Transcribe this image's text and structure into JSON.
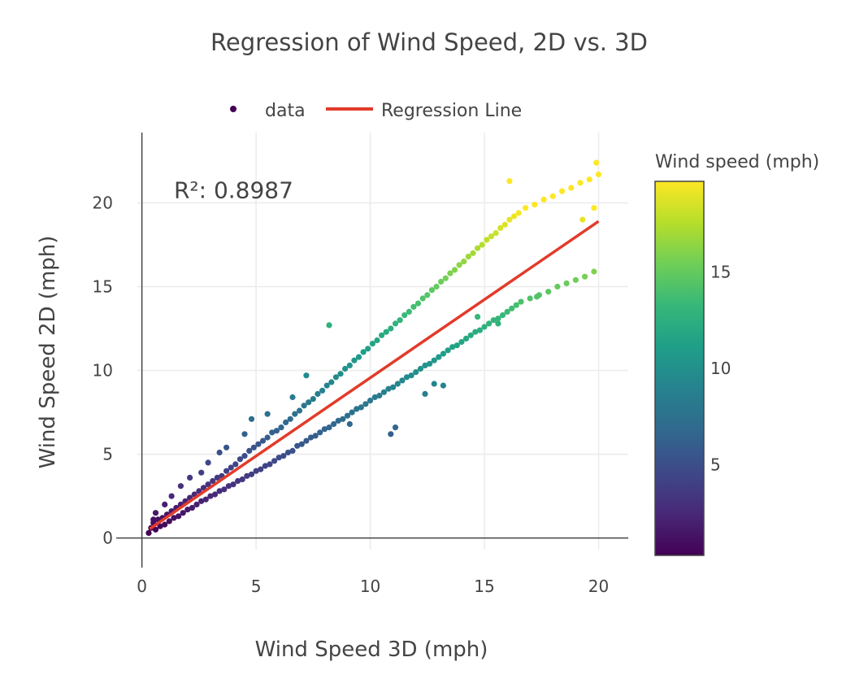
{
  "chart_data": {
    "type": "scatter",
    "title": "Regression of Wind Speed, 2D vs. 3D",
    "xlabel": "Wind Speed 3D (mph)",
    "ylabel": "Wind Speed 2D (mph)",
    "xlim": [
      -0.2,
      21.3
    ],
    "ylim": [
      -0.7,
      24.2
    ],
    "xticks": [
      0,
      5,
      10,
      15,
      20
    ],
    "yticks": [
      0,
      5,
      10,
      15,
      20
    ],
    "grid": true,
    "legend": {
      "placement": "top-center",
      "entries": [
        "data",
        "Regression Line"
      ]
    },
    "annotation": {
      "text": "R²: 0.8987",
      "x": 1.4,
      "y": 20.3
    },
    "colorbar": {
      "title": "Wind speed (mph)",
      "colorscale": "viridis",
      "range": [
        0.3,
        19.7
      ],
      "ticks": [
        5,
        10,
        15
      ]
    },
    "colors": {
      "regression_line": "#e23b2a",
      "viridis": [
        "#440154",
        "#482878",
        "#3e4989",
        "#31688e",
        "#26828e",
        "#1f9e89",
        "#35b779",
        "#6ece58",
        "#b5de2b",
        "#fde725"
      ]
    },
    "series": [
      {
        "name": "data",
        "mode": "markers",
        "points": [
          [
            0.4,
            0.6
          ],
          [
            0.5,
            0.9
          ],
          [
            0.6,
            0.5
          ],
          [
            0.7,
            1.1
          ],
          [
            0.8,
            0.7
          ],
          [
            0.9,
            1.2
          ],
          [
            1.0,
            0.8
          ],
          [
            1.1,
            1.4
          ],
          [
            1.2,
            1.0
          ],
          [
            1.3,
            1.6
          ],
          [
            1.4,
            1.2
          ],
          [
            1.5,
            1.8
          ],
          [
            1.6,
            1.3
          ],
          [
            1.7,
            2.0
          ],
          [
            1.8,
            1.5
          ],
          [
            1.9,
            2.2
          ],
          [
            2.0,
            1.7
          ],
          [
            2.1,
            2.4
          ],
          [
            2.2,
            1.8
          ],
          [
            2.3,
            2.6
          ],
          [
            2.4,
            2.0
          ],
          [
            2.5,
            2.8
          ],
          [
            2.6,
            2.2
          ],
          [
            2.7,
            3.0
          ],
          [
            2.8,
            2.3
          ],
          [
            2.9,
            3.2
          ],
          [
            3.0,
            2.5
          ],
          [
            3.1,
            3.4
          ],
          [
            3.2,
            2.6
          ],
          [
            3.3,
            3.6
          ],
          [
            3.4,
            2.8
          ],
          [
            3.5,
            3.7
          ],
          [
            3.6,
            2.9
          ],
          [
            3.7,
            4.0
          ],
          [
            3.8,
            3.1
          ],
          [
            3.9,
            4.2
          ],
          [
            4.0,
            3.2
          ],
          [
            4.1,
            4.4
          ],
          [
            4.2,
            3.4
          ],
          [
            4.3,
            4.7
          ],
          [
            4.4,
            3.5
          ],
          [
            4.5,
            4.9
          ],
          [
            4.6,
            3.7
          ],
          [
            4.7,
            5.2
          ],
          [
            4.8,
            3.8
          ],
          [
            4.9,
            5.4
          ],
          [
            5.0,
            4.0
          ],
          [
            5.1,
            5.6
          ],
          [
            5.2,
            4.1
          ],
          [
            5.3,
            5.8
          ],
          [
            5.4,
            4.3
          ],
          [
            5.5,
            6.0
          ],
          [
            5.6,
            4.4
          ],
          [
            5.7,
            6.3
          ],
          [
            5.8,
            4.6
          ],
          [
            5.9,
            6.4
          ],
          [
            6.0,
            4.8
          ],
          [
            6.1,
            6.6
          ],
          [
            6.2,
            4.9
          ],
          [
            6.3,
            6.9
          ],
          [
            6.4,
            5.1
          ],
          [
            6.5,
            7.1
          ],
          [
            6.6,
            5.2
          ],
          [
            6.7,
            7.4
          ],
          [
            6.8,
            5.5
          ],
          [
            6.9,
            7.6
          ],
          [
            7.0,
            5.6
          ],
          [
            7.1,
            7.9
          ],
          [
            7.2,
            5.8
          ],
          [
            7.3,
            8.1
          ],
          [
            7.4,
            6.0
          ],
          [
            7.5,
            8.3
          ],
          [
            7.6,
            6.1
          ],
          [
            7.7,
            8.6
          ],
          [
            7.8,
            6.3
          ],
          [
            7.9,
            8.8
          ],
          [
            8.0,
            6.5
          ],
          [
            8.1,
            9.1
          ],
          [
            8.2,
            6.6
          ],
          [
            8.3,
            9.3
          ],
          [
            8.4,
            6.8
          ],
          [
            8.5,
            9.6
          ],
          [
            8.6,
            7.0
          ],
          [
            8.7,
            9.8
          ],
          [
            8.8,
            7.1
          ],
          [
            8.9,
            10.1
          ],
          [
            9.0,
            7.3
          ],
          [
            9.1,
            10.3
          ],
          [
            9.2,
            7.5
          ],
          [
            9.3,
            10.6
          ],
          [
            9.4,
            7.7
          ],
          [
            9.5,
            10.8
          ],
          [
            9.6,
            7.8
          ],
          [
            9.7,
            11.1
          ],
          [
            9.8,
            8.0
          ],
          [
            9.9,
            11.3
          ],
          [
            10.0,
            8.2
          ],
          [
            10.1,
            11.6
          ],
          [
            10.2,
            8.4
          ],
          [
            10.3,
            11.8
          ],
          [
            10.4,
            8.5
          ],
          [
            10.5,
            12.1
          ],
          [
            10.6,
            8.7
          ],
          [
            10.7,
            12.3
          ],
          [
            10.8,
            8.9
          ],
          [
            10.9,
            12.5
          ],
          [
            11.0,
            9.0
          ],
          [
            11.1,
            12.8
          ],
          [
            11.2,
            9.2
          ],
          [
            11.3,
            13.0
          ],
          [
            11.4,
            9.4
          ],
          [
            11.5,
            13.3
          ],
          [
            11.6,
            9.6
          ],
          [
            11.7,
            13.5
          ],
          [
            11.8,
            9.7
          ],
          [
            11.9,
            13.8
          ],
          [
            12.0,
            9.9
          ],
          [
            12.1,
            14.0
          ],
          [
            12.2,
            10.1
          ],
          [
            12.3,
            14.3
          ],
          [
            12.4,
            10.3
          ],
          [
            12.5,
            14.5
          ],
          [
            12.6,
            10.4
          ],
          [
            12.7,
            14.8
          ],
          [
            12.8,
            10.6
          ],
          [
            12.9,
            15.0
          ],
          [
            13.0,
            10.8
          ],
          [
            13.1,
            15.3
          ],
          [
            13.2,
            11.0
          ],
          [
            13.3,
            15.5
          ],
          [
            13.4,
            11.2
          ],
          [
            13.5,
            15.8
          ],
          [
            13.6,
            11.4
          ],
          [
            13.7,
            16.0
          ],
          [
            13.8,
            11.5
          ],
          [
            13.9,
            16.3
          ],
          [
            14.0,
            11.7
          ],
          [
            14.1,
            16.5
          ],
          [
            14.2,
            11.9
          ],
          [
            14.3,
            16.8
          ],
          [
            14.4,
            12.1
          ],
          [
            14.5,
            17.0
          ],
          [
            14.6,
            12.3
          ],
          [
            14.7,
            17.3
          ],
          [
            14.8,
            12.4
          ],
          [
            14.9,
            17.5
          ],
          [
            15.0,
            12.6
          ],
          [
            15.1,
            17.8
          ],
          [
            15.2,
            12.8
          ],
          [
            15.3,
            18.0
          ],
          [
            15.4,
            13.0
          ],
          [
            15.5,
            18.2
          ],
          [
            15.6,
            13.1
          ],
          [
            15.7,
            18.5
          ],
          [
            15.8,
            13.3
          ],
          [
            15.9,
            18.7
          ],
          [
            16.0,
            13.5
          ],
          [
            16.1,
            19.0
          ],
          [
            16.2,
            13.7
          ],
          [
            16.3,
            19.2
          ],
          [
            16.4,
            13.9
          ],
          [
            16.5,
            19.4
          ],
          [
            16.6,
            14.1
          ],
          [
            16.8,
            19.7
          ],
          [
            17.0,
            14.3
          ],
          [
            17.2,
            19.9
          ],
          [
            17.4,
            14.5
          ],
          [
            17.6,
            20.2
          ],
          [
            17.8,
            14.7
          ],
          [
            18.0,
            20.4
          ],
          [
            18.2,
            15.0
          ],
          [
            18.4,
            20.7
          ],
          [
            18.6,
            15.2
          ],
          [
            18.8,
            20.9
          ],
          [
            19.0,
            15.4
          ],
          [
            19.2,
            21.2
          ],
          [
            19.4,
            15.6
          ],
          [
            19.6,
            21.4
          ],
          [
            19.8,
            15.9
          ],
          [
            20.0,
            21.7
          ],
          [
            16.1,
            21.3
          ],
          [
            17.3,
            14.4
          ],
          [
            19.3,
            19.0
          ],
          [
            19.9,
            22.4
          ],
          [
            19.8,
            19.7
          ],
          [
            15.6,
            12.8
          ],
          [
            14.7,
            13.2
          ],
          [
            13.2,
            9.1
          ],
          [
            12.8,
            9.2
          ],
          [
            12.4,
            8.6
          ],
          [
            10.9,
            6.2
          ],
          [
            11.1,
            6.6
          ],
          [
            9.1,
            6.8
          ],
          [
            8.2,
            12.7
          ],
          [
            7.2,
            9.7
          ],
          [
            6.6,
            8.4
          ],
          [
            5.5,
            7.4
          ],
          [
            4.8,
            7.1
          ],
          [
            4.5,
            6.2
          ],
          [
            3.7,
            5.4
          ],
          [
            3.4,
            5.1
          ],
          [
            2.9,
            4.5
          ],
          [
            2.6,
            3.9
          ],
          [
            2.1,
            3.6
          ],
          [
            1.7,
            3.1
          ],
          [
            1.3,
            2.5
          ],
          [
            1.0,
            2.0
          ],
          [
            0.6,
            1.5
          ],
          [
            0.5,
            1.1
          ],
          [
            0.3,
            0.3
          ]
        ]
      },
      {
        "name": "Regression Line",
        "mode": "line",
        "points": [
          [
            0.35,
            0.55
          ],
          [
            20.0,
            18.9
          ]
        ]
      }
    ]
  }
}
